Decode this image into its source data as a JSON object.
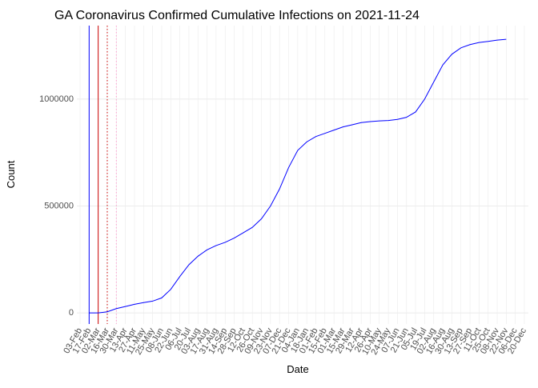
{
  "chart_data": {
    "type": "line",
    "title": "GA Coronavirus Confirmed Cumulative Infections on 2021-11-24",
    "x_label": "Date",
    "y_label": "Count",
    "categories": [
      "03-Feb",
      "17-Feb",
      "02-Mar",
      "16-Mar",
      "30-Mar",
      "13-Apr",
      "27-Apr",
      "11-May",
      "25-May",
      "08-Jun",
      "22-Jun",
      "06-Jul",
      "20-Jul",
      "03-Aug",
      "17-Aug",
      "31-Aug",
      "14-Sep",
      "28-Sep",
      "12-Oct",
      "26-Oct",
      "09-Nov",
      "23-Nov",
      "07-Dec",
      "21-Dec",
      "04-Jan",
      "18-Jan",
      "01-Feb",
      "15-Feb",
      "01-Mar",
      "15-Mar",
      "29-Mar",
      "12-Apr",
      "26-Apr",
      "10-May",
      "24-May",
      "07-Jun",
      "21-Jun",
      "05-Jul",
      "19-Jul",
      "02-Aug",
      "16-Aug",
      "30-Aug",
      "13-Sep",
      "27-Sep",
      "11-Oct",
      "25-Oct",
      "08-Nov",
      "22-Nov",
      "06-Dec",
      "20-Dec"
    ],
    "series": [
      {
        "name": "Count",
        "color": "#0000ff",
        "values": [
          null,
          0,
          0,
          5000,
          20000,
          30000,
          40000,
          48000,
          55000,
          70000,
          110000,
          170000,
          225000,
          265000,
          295000,
          315000,
          330000,
          350000,
          375000,
          400000,
          440000,
          500000,
          580000,
          680000,
          760000,
          800000,
          825000,
          840000,
          855000,
          870000,
          880000,
          890000,
          895000,
          898000,
          900000,
          905000,
          915000,
          940000,
          1000000,
          1080000,
          1160000,
          1210000,
          1240000,
          1255000,
          1265000,
          1270000,
          1276000,
          1280000,
          null,
          null
        ]
      }
    ],
    "reference_lines": [
      {
        "x": "17-Feb",
        "color": "#0000ff",
        "style": "solid"
      },
      {
        "x": "02-Mar",
        "color": "#cc0000",
        "style": "solid"
      },
      {
        "x": "16-Mar",
        "color": "#cc0000",
        "style": "dotted"
      },
      {
        "x": "30-Mar",
        "color": "#ff99cc",
        "style": "dotted"
      }
    ],
    "ylim": [
      -52000,
      1344000
    ],
    "yticks": [
      0,
      500000,
      1000000
    ],
    "grid": true
  }
}
